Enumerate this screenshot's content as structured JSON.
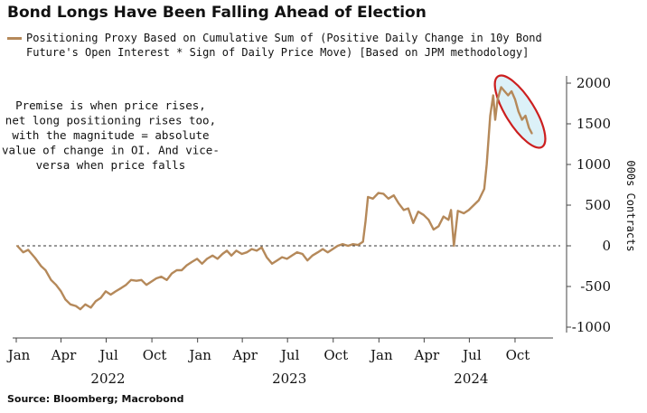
{
  "header": {
    "title": "Bond Longs Have Been Falling Ahead of Election",
    "legend_line1": "Positioning Proxy Based on Cumulative Sum of (Positive Daily Change in 10y Bond",
    "legend_line2": "Future's Open Interest * Sign of Daily Price Move) [Based on JPM methodology]"
  },
  "footer": {
    "source": "Source: Bloomberg; Macrobond"
  },
  "colors": {
    "series": "#b5895a",
    "highlight": "#cc1f1f",
    "highlight_fill": "#bfe6f2",
    "zero_line": "#333333"
  },
  "chart_data": {
    "type": "line",
    "title": "Bond Longs Have Been Falling Ahead of Election",
    "ylabel": "000s Contracts",
    "ylim": [
      -1000,
      2000
    ],
    "yticks": [
      2000,
      1500,
      1000,
      500,
      0,
      -500,
      -1000
    ],
    "xlim": [
      "2022-01-01",
      "2024-12-31"
    ],
    "xticks": [
      {
        "date": "2022-01-01",
        "label": "Jan"
      },
      {
        "date": "2022-04-01",
        "label": "Apr"
      },
      {
        "date": "2022-07-01",
        "label": "Jul"
      },
      {
        "date": "2022-10-01",
        "label": "Oct"
      },
      {
        "date": "2023-01-01",
        "label": "Jan"
      },
      {
        "date": "2023-04-01",
        "label": "Apr"
      },
      {
        "date": "2023-07-01",
        "label": "Jul"
      },
      {
        "date": "2023-10-01",
        "label": "Oct"
      },
      {
        "date": "2024-01-01",
        "label": "Jan"
      },
      {
        "date": "2024-04-01",
        "label": "Apr"
      },
      {
        "date": "2024-07-01",
        "label": "Jul"
      },
      {
        "date": "2024-10-01",
        "label": "Oct"
      }
    ],
    "year_labels": [
      {
        "date": "2022-07-01",
        "label": "2022"
      },
      {
        "date": "2023-07-01",
        "label": "2023"
      },
      {
        "date": "2024-07-01",
        "label": "2024"
      }
    ],
    "zero_line": "dashed",
    "annotation": {
      "lines": [
        "Premise is when price rises,",
        "net long positioning rises too,",
        "with the magnitude = absolute",
        "value of change in OI. And vice-",
        "versa when price falls"
      ],
      "anchor_date": "2022-07-10",
      "anchor_value": 1680
    },
    "highlight": {
      "start": "2024-09-10",
      "end": "2024-11-04",
      "shape": "ellipse"
    },
    "series": [
      {
        "name": "Positioning Proxy Based on Cumulative Sum of (Positive Daily Change in 10y Bond Future's Open Interest * Sign of Daily Price Move) [Based on JPM methodology]",
        "points": [
          [
            "2022-01-03",
            0
          ],
          [
            "2022-01-15",
            -80
          ],
          [
            "2022-01-25",
            -50
          ],
          [
            "2022-02-08",
            -150
          ],
          [
            "2022-02-20",
            -250
          ],
          [
            "2022-03-01",
            -300
          ],
          [
            "2022-03-12",
            -420
          ],
          [
            "2022-03-22",
            -480
          ],
          [
            "2022-04-01",
            -560
          ],
          [
            "2022-04-10",
            -660
          ],
          [
            "2022-04-20",
            -720
          ],
          [
            "2022-05-01",
            -740
          ],
          [
            "2022-05-10",
            -780
          ],
          [
            "2022-05-20",
            -720
          ],
          [
            "2022-05-31",
            -760
          ],
          [
            "2022-06-10",
            -680
          ],
          [
            "2022-06-20",
            -640
          ],
          [
            "2022-06-30",
            -560
          ],
          [
            "2022-07-10",
            -600
          ],
          [
            "2022-07-20",
            -560
          ],
          [
            "2022-07-31",
            -520
          ],
          [
            "2022-08-10",
            -480
          ],
          [
            "2022-08-20",
            -420
          ],
          [
            "2022-08-31",
            -430
          ],
          [
            "2022-09-10",
            -420
          ],
          [
            "2022-09-20",
            -480
          ],
          [
            "2022-09-30",
            -440
          ],
          [
            "2022-10-10",
            -400
          ],
          [
            "2022-10-20",
            -380
          ],
          [
            "2022-10-31",
            -420
          ],
          [
            "2022-11-10",
            -340
          ],
          [
            "2022-11-20",
            -300
          ],
          [
            "2022-11-30",
            -300
          ],
          [
            "2022-12-10",
            -240
          ],
          [
            "2022-12-20",
            -200
          ],
          [
            "2022-12-31",
            -160
          ],
          [
            "2023-01-10",
            -220
          ],
          [
            "2023-01-20",
            -160
          ],
          [
            "2023-01-31",
            -120
          ],
          [
            "2023-02-10",
            -160
          ],
          [
            "2023-02-20",
            -100
          ],
          [
            "2023-03-01",
            -60
          ],
          [
            "2023-03-10",
            -120
          ],
          [
            "2023-03-20",
            -60
          ],
          [
            "2023-03-31",
            -100
          ],
          [
            "2023-04-10",
            -80
          ],
          [
            "2023-04-20",
            -40
          ],
          [
            "2023-04-30",
            -60
          ],
          [
            "2023-05-10",
            -20
          ],
          [
            "2023-05-20",
            -140
          ],
          [
            "2023-05-31",
            -220
          ],
          [
            "2023-06-10",
            -180
          ],
          [
            "2023-06-20",
            -140
          ],
          [
            "2023-06-30",
            -160
          ],
          [
            "2023-07-10",
            -120
          ],
          [
            "2023-07-20",
            -80
          ],
          [
            "2023-07-31",
            -100
          ],
          [
            "2023-08-10",
            -180
          ],
          [
            "2023-08-20",
            -120
          ],
          [
            "2023-08-31",
            -80
          ],
          [
            "2023-09-10",
            -40
          ],
          [
            "2023-09-20",
            -80
          ],
          [
            "2023-09-30",
            -40
          ],
          [
            "2023-10-10",
            0
          ],
          [
            "2023-10-20",
            20
          ],
          [
            "2023-10-31",
            0
          ],
          [
            "2023-11-10",
            20
          ],
          [
            "2023-11-20",
            10
          ],
          [
            "2023-11-30",
            50
          ],
          [
            "2023-12-05",
            300
          ],
          [
            "2023-12-10",
            600
          ],
          [
            "2023-12-20",
            580
          ],
          [
            "2023-12-31",
            650
          ],
          [
            "2024-01-10",
            640
          ],
          [
            "2024-01-20",
            580
          ],
          [
            "2024-01-31",
            620
          ],
          [
            "2024-02-10",
            520
          ],
          [
            "2024-02-20",
            440
          ],
          [
            "2024-02-29",
            460
          ],
          [
            "2024-03-10",
            280
          ],
          [
            "2024-03-20",
            420
          ],
          [
            "2024-03-31",
            380
          ],
          [
            "2024-04-10",
            320
          ],
          [
            "2024-04-20",
            200
          ],
          [
            "2024-04-30",
            240
          ],
          [
            "2024-05-10",
            360
          ],
          [
            "2024-05-20",
            320
          ],
          [
            "2024-05-25",
            440
          ],
          [
            "2024-05-31",
            0
          ],
          [
            "2024-06-08",
            430
          ],
          [
            "2024-06-20",
            400
          ],
          [
            "2024-06-30",
            440
          ],
          [
            "2024-07-10",
            500
          ],
          [
            "2024-07-20",
            560
          ],
          [
            "2024-07-31",
            700
          ],
          [
            "2024-08-05",
            1000
          ],
          [
            "2024-08-12",
            1600
          ],
          [
            "2024-08-18",
            1850
          ],
          [
            "2024-08-22",
            1550
          ],
          [
            "2024-08-27",
            1800
          ],
          [
            "2024-09-03",
            1950
          ],
          [
            "2024-09-10",
            1900
          ],
          [
            "2024-09-17",
            1850
          ],
          [
            "2024-09-24",
            1900
          ],
          [
            "2024-10-01",
            1800
          ],
          [
            "2024-10-08",
            1650
          ],
          [
            "2024-10-15",
            1550
          ],
          [
            "2024-10-22",
            1600
          ],
          [
            "2024-10-29",
            1450
          ],
          [
            "2024-11-04",
            1380
          ]
        ]
      }
    ]
  }
}
